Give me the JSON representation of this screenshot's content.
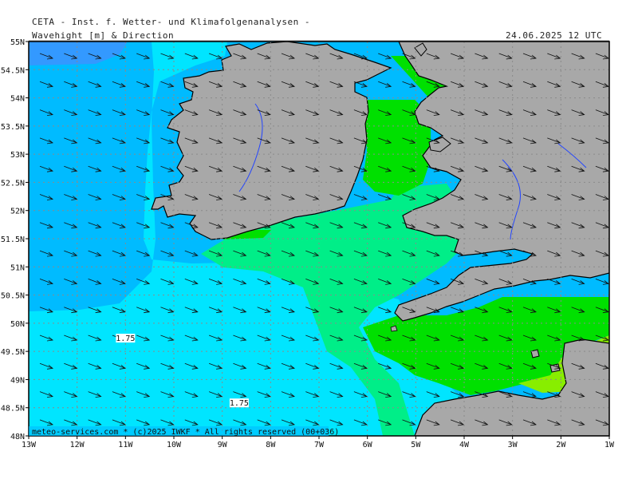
{
  "header": {
    "institute": "CETA - Inst. f. Wetter- und Klimafolgenanalysen -",
    "subtitle": "Wavehight [m] & Direction",
    "valid_time": "24.06.2025 12 UTC"
  },
  "footer": {
    "credit": "meteo-services.com * (c)2025 IWKF * All rights reserved (00+036)"
  },
  "map": {
    "lon_range": [
      -13,
      -1
    ],
    "lat_range": [
      48,
      55
    ],
    "lon_ticks": [
      {
        "v": -13,
        "t": "13W"
      },
      {
        "v": -12,
        "t": "12W"
      },
      {
        "v": -11,
        "t": "11W"
      },
      {
        "v": -10,
        "t": "10W"
      },
      {
        "v": -9,
        "t": "9W"
      },
      {
        "v": -8,
        "t": "8W"
      },
      {
        "v": -7,
        "t": "7W"
      },
      {
        "v": -6,
        "t": "6W"
      },
      {
        "v": -5,
        "t": "5W"
      },
      {
        "v": -4,
        "t": "4W"
      },
      {
        "v": -3,
        "t": "3W"
      },
      {
        "v": -2,
        "t": "2W"
      },
      {
        "v": -1,
        "t": "1W"
      }
    ],
    "lat_ticks": [
      {
        "v": 55,
        "t": "55N"
      },
      {
        "v": 54.5,
        "t": "54.5N"
      },
      {
        "v": 54,
        "t": "54N"
      },
      {
        "v": 53.5,
        "t": "53.5N"
      },
      {
        "v": 53,
        "t": "53N"
      },
      {
        "v": 52.5,
        "t": "52.5N"
      },
      {
        "v": 52,
        "t": "52N"
      },
      {
        "v": 51.5,
        "t": "51.5N"
      },
      {
        "v": 51,
        "t": "51N"
      },
      {
        "v": 50.5,
        "t": "50.5N"
      },
      {
        "v": 50,
        "t": "50N"
      },
      {
        "v": 49.5,
        "t": "49.5N"
      },
      {
        "v": 49,
        "t": "49N"
      },
      {
        "v": 48.5,
        "t": "48.5N"
      },
      {
        "v": 48,
        "t": "48N"
      }
    ],
    "contour_labels": [
      {
        "text": "1.75",
        "lon": -11.0,
        "lat": 49.7
      },
      {
        "text": "1.75",
        "lon": -8.65,
        "lat": 48.55
      }
    ],
    "colors": {
      "land": "#a8a8a8",
      "sea_highest": "#3399ff",
      "sea_high": "#00bbff",
      "sea_mid": "#00e5ff",
      "sea_low": "#00ee88",
      "sea_lower": "#00e000",
      "sea_lowest": "#88ee00",
      "arrow": "#111111"
    }
  }
}
